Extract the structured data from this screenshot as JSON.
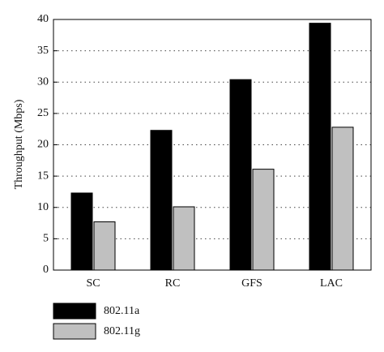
{
  "chart_data": {
    "type": "bar",
    "y_label": "Throughput (Mbps)",
    "categories": [
      "SC",
      "RC",
      "GFS",
      "LAC"
    ],
    "series": [
      {
        "name": "802.11a",
        "color": "#000000",
        "values": [
          12.3,
          22.3,
          30.4,
          39.4
        ]
      },
      {
        "name": "802.11g",
        "color": "#c0c0c0",
        "values": [
          7.7,
          10.1,
          16.1,
          22.8
        ]
      }
    ],
    "ylim": [
      0,
      40
    ],
    "yticks": [
      0,
      5,
      10,
      15,
      20,
      25,
      30,
      35,
      40
    ],
    "grid": true
  }
}
